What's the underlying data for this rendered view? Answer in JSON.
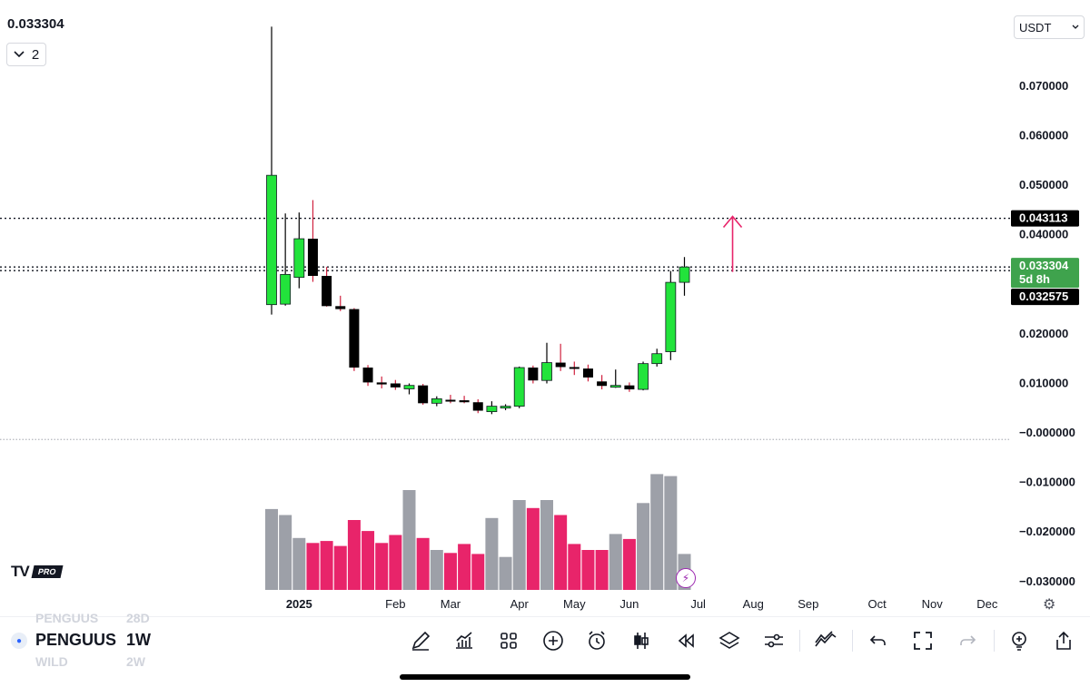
{
  "header": {
    "last_price": "0.033304",
    "collapse_count": "2",
    "currency": "USDT"
  },
  "logo": {
    "mark": "TV",
    "badge": "PRO"
  },
  "price_labels": {
    "target": "0.043113",
    "current": "0.033304",
    "countdown": "5d 8h",
    "support": "0.032575"
  },
  "colors": {
    "up": "#22e33b",
    "down": "#000000",
    "wick_up": "#000000",
    "wick_down": "#d0223f",
    "vol_down": "#e8246a",
    "vol_up": "#9da0a8",
    "arrow": "#e8246a",
    "current_label_bg": "#3fa34d",
    "dark_label_bg": "#000000"
  },
  "symbol": {
    "name": "PENGUUS",
    "interval": "1W",
    "ghost_above_name": "PENGUUS",
    "ghost_above_interval": "28D",
    "ghost_below_name": "WILD",
    "ghost_below_interval": "2W"
  },
  "toolbar_icons": [
    "draw-icon",
    "indicators-icon",
    "layout-grid-icon",
    "add-icon",
    "alert-clock-icon",
    "candles-icon",
    "replay-icon",
    "layers-icon",
    "settings-sliders-icon",
    "compare-icon",
    "undo-icon",
    "fullscreen-icon",
    "redo-icon",
    "ideas-icon",
    "share-icon"
  ],
  "chart_data": {
    "type": "candlestick",
    "interval": "1W",
    "y_axis": {
      "ticks": [
        "0.070000",
        "0.060000",
        "0.050000",
        "0.040000",
        "0.020000",
        "0.010000",
        "−0.000000",
        "−0.010000",
        "−0.020000",
        "−0.030000"
      ],
      "tick_values": [
        0.07,
        0.06,
        0.05,
        0.04,
        0.02,
        0.01,
        0,
        -0.01,
        -0.02,
        -0.03
      ],
      "range": [
        -0.033,
        0.083
      ]
    },
    "x_axis": {
      "labels": [
        "2025",
        "Feb",
        "Mar",
        "Apr",
        "May",
        "Jun",
        "Jul",
        "Aug",
        "Sep",
        "Oct",
        "Nov",
        "Dec"
      ],
      "label_bar_index": [
        2,
        9,
        13,
        18,
        22,
        26,
        31,
        35,
        39,
        44,
        48,
        52
      ]
    },
    "horizontal_lines": [
      {
        "price": 0.043113,
        "style": "dotted"
      },
      {
        "price": 0.033304,
        "style": "dotted"
      },
      {
        "price": 0.032575,
        "style": "dotted"
      },
      {
        "price": -0.0015,
        "style": "dotted-light"
      }
    ],
    "arrow": {
      "from_price": 0.0323,
      "to_price": 0.0435,
      "bar_index": 33.5
    },
    "candles": [
      {
        "o": 0.0257,
        "h": 0.0818,
        "l": 0.0237,
        "c": 0.0518
      },
      {
        "o": 0.0258,
        "h": 0.0441,
        "l": 0.0255,
        "c": 0.0318
      },
      {
        "o": 0.0312,
        "h": 0.0443,
        "l": 0.029,
        "c": 0.039
      },
      {
        "o": 0.039,
        "h": 0.0468,
        "l": 0.0303,
        "c": 0.0315
      },
      {
        "o": 0.0315,
        "h": 0.0333,
        "l": 0.0253,
        "c": 0.0254
      },
      {
        "o": 0.0254,
        "h": 0.0275,
        "l": 0.0244,
        "c": 0.0248
      },
      {
        "o": 0.0248,
        "h": 0.025,
        "l": 0.0123,
        "c": 0.013
      },
      {
        "o": 0.013,
        "h": 0.0135,
        "l": 0.0093,
        "c": 0.01
      },
      {
        "o": 0.01,
        "h": 0.0112,
        "l": 0.0088,
        "c": 0.0096
      },
      {
        "o": 0.0098,
        "h": 0.0105,
        "l": 0.0085,
        "c": 0.009
      },
      {
        "o": 0.0087,
        "h": 0.0098,
        "l": 0.0076,
        "c": 0.0094
      },
      {
        "o": 0.0094,
        "h": 0.0097,
        "l": 0.0055,
        "c": 0.0058
      },
      {
        "o": 0.0058,
        "h": 0.0072,
        "l": 0.0052,
        "c": 0.0067
      },
      {
        "o": 0.0065,
        "h": 0.0075,
        "l": 0.0058,
        "c": 0.0062
      },
      {
        "o": 0.0064,
        "h": 0.0073,
        "l": 0.0058,
        "c": 0.006
      },
      {
        "o": 0.006,
        "h": 0.0066,
        "l": 0.0038,
        "c": 0.0043
      },
      {
        "o": 0.0041,
        "h": 0.0062,
        "l": 0.0036,
        "c": 0.0052
      },
      {
        "o": 0.005,
        "h": 0.0056,
        "l": 0.0044,
        "c": 0.0052
      },
      {
        "o": 0.0052,
        "h": 0.0132,
        "l": 0.0048,
        "c": 0.013
      },
      {
        "o": 0.013,
        "h": 0.0134,
        "l": 0.0098,
        "c": 0.0104
      },
      {
        "o": 0.0104,
        "h": 0.018,
        "l": 0.0098,
        "c": 0.014
      },
      {
        "o": 0.014,
        "h": 0.0178,
        "l": 0.0123,
        "c": 0.0131
      },
      {
        "o": 0.0131,
        "h": 0.0142,
        "l": 0.0115,
        "c": 0.0129
      },
      {
        "o": 0.0128,
        "h": 0.0136,
        "l": 0.0102,
        "c": 0.011
      },
      {
        "o": 0.0102,
        "h": 0.0115,
        "l": 0.0086,
        "c": 0.0093
      },
      {
        "o": 0.0092,
        "h": 0.0126,
        "l": 0.0089,
        "c": 0.0094
      },
      {
        "o": 0.0094,
        "h": 0.01,
        "l": 0.0081,
        "c": 0.0086
      },
      {
        "o": 0.0086,
        "h": 0.0142,
        "l": 0.0084,
        "c": 0.0138
      },
      {
        "o": 0.0138,
        "h": 0.0168,
        "l": 0.0132,
        "c": 0.0158
      },
      {
        "o": 0.0162,
        "h": 0.0325,
        "l": 0.0145,
        "c": 0.0302
      },
      {
        "o": 0.0302,
        "h": 0.0353,
        "l": 0.0275,
        "c": 0.0333
      }
    ],
    "volume": {
      "levels": [
        0.81,
        0.75,
        0.52,
        0.47,
        0.49,
        0.44,
        0.7,
        0.59,
        0.47,
        0.55,
        1.0,
        0.52,
        0.4,
        0.37,
        0.46,
        0.36,
        0.72,
        0.33,
        0.9,
        0.82,
        0.9,
        0.75,
        0.46,
        0.4,
        0.4,
        0.56,
        0.51,
        0.87,
        1.16,
        1.14,
        0.36
      ]
    }
  }
}
